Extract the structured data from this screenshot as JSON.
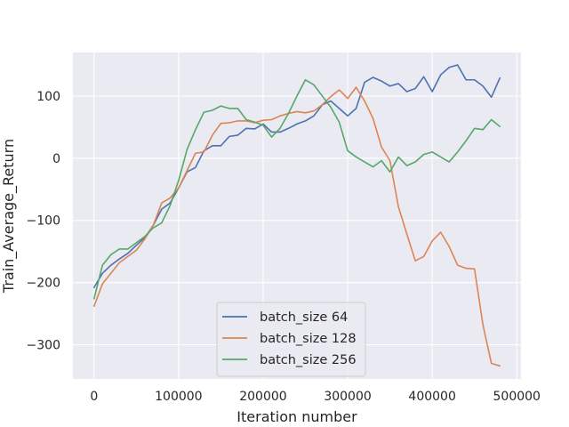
{
  "chart_data": {
    "type": "line",
    "title": "",
    "xlabel": "Iteration number",
    "ylabel": "Train_Average_Return",
    "xlim": [
      -25000,
      505000
    ],
    "ylim": [
      -355,
      170
    ],
    "xticks": [
      0,
      100000,
      200000,
      300000,
      400000,
      500000
    ],
    "yticks": [
      -300,
      -200,
      -100,
      0,
      100
    ],
    "xtick_labels": [
      "0",
      "100000",
      "200000",
      "300000",
      "400000",
      "500000"
    ],
    "ytick_labels": [
      "−300",
      "−200",
      "−100",
      "0",
      "100"
    ],
    "grid": true,
    "legend_position": "lower-center",
    "series": [
      {
        "name": "batch_size 64",
        "color": "#4c72b0",
        "x": [
          0,
          10000,
          20000,
          30000,
          40000,
          50000,
          60000,
          70000,
          80000,
          90000,
          100000,
          110000,
          120000,
          130000,
          140000,
          150000,
          160000,
          170000,
          180000,
          190000,
          200000,
          210000,
          220000,
          230000,
          240000,
          250000,
          260000,
          270000,
          280000,
          290000,
          300000,
          310000,
          320000,
          330000,
          340000,
          350000,
          360000,
          370000,
          380000,
          390000,
          400000,
          410000,
          420000,
          430000,
          440000,
          450000,
          460000,
          470000,
          480000
        ],
        "y": [
          -208,
          -185,
          -172,
          -162,
          -153,
          -140,
          -128,
          -108,
          -82,
          -72,
          -48,
          -22,
          -15,
          12,
          20,
          20,
          35,
          37,
          48,
          47,
          55,
          42,
          42,
          48,
          55,
          60,
          68,
          86,
          92,
          80,
          68,
          80,
          122,
          130,
          124,
          116,
          120,
          107,
          112,
          131,
          107,
          134,
          146,
          150,
          126,
          126,
          116,
          98,
          129
        ]
      },
      {
        "name": "batch_size 128",
        "color": "#dd8452",
        "x": [
          0,
          10000,
          20000,
          30000,
          40000,
          50000,
          60000,
          70000,
          80000,
          90000,
          100000,
          110000,
          120000,
          130000,
          140000,
          150000,
          160000,
          170000,
          180000,
          190000,
          200000,
          210000,
          220000,
          230000,
          240000,
          250000,
          260000,
          270000,
          280000,
          290000,
          300000,
          310000,
          320000,
          330000,
          340000,
          350000,
          360000,
          370000,
          380000,
          390000,
          400000,
          410000,
          420000,
          430000,
          440000,
          450000,
          460000,
          470000,
          480000
        ],
        "y": [
          -238,
          -202,
          -185,
          -168,
          -158,
          -148,
          -130,
          -108,
          -72,
          -64,
          -48,
          -20,
          8,
          10,
          37,
          56,
          57,
          60,
          60,
          57,
          61,
          62,
          68,
          72,
          75,
          73,
          76,
          86,
          99,
          110,
          96,
          114,
          92,
          64,
          18,
          -4,
          -78,
          -122,
          -165,
          -158,
          -133,
          -119,
          -142,
          -172,
          -177,
          -178,
          -268,
          -330,
          -334
        ]
      },
      {
        "name": "batch_size 256",
        "color": "#55a868",
        "x": [
          0,
          10000,
          20000,
          30000,
          40000,
          50000,
          60000,
          70000,
          80000,
          90000,
          100000,
          110000,
          120000,
          130000,
          140000,
          150000,
          160000,
          170000,
          180000,
          190000,
          200000,
          210000,
          220000,
          230000,
          240000,
          250000,
          260000,
          270000,
          280000,
          290000,
          300000,
          310000,
          320000,
          330000,
          340000,
          350000,
          360000,
          370000,
          380000,
          390000,
          400000,
          410000,
          420000,
          430000,
          440000,
          450000,
          460000,
          470000,
          480000
        ],
        "y": [
          -226,
          -172,
          -155,
          -146,
          -146,
          -136,
          -126,
          -112,
          -104,
          -76,
          -36,
          14,
          46,
          74,
          77,
          84,
          80,
          80,
          62,
          58,
          53,
          34,
          48,
          72,
          100,
          126,
          118,
          100,
          82,
          58,
          12,
          2,
          -6,
          -14,
          -4,
          -22,
          2,
          -12,
          -6,
          6,
          10,
          2,
          -6,
          10,
          28,
          48,
          46,
          62,
          51
        ]
      }
    ],
    "legend": {
      "entries": [
        "batch_size 64",
        "batch_size 128",
        "batch_size 256"
      ]
    },
    "colors": {
      "plot_background": "#eaeaf2",
      "grid": "#ffffff",
      "text": "#262626"
    }
  }
}
